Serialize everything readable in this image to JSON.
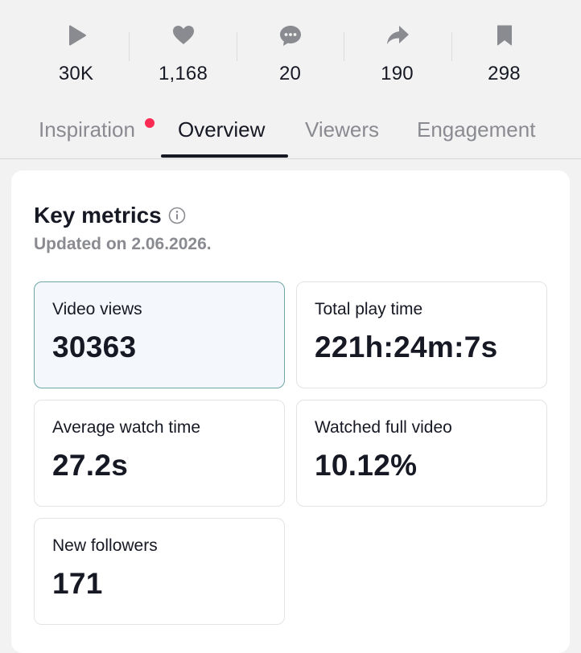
{
  "stats": [
    {
      "icon": "play-icon",
      "value": "30K"
    },
    {
      "icon": "heart-icon",
      "value": "1,168"
    },
    {
      "icon": "comment-icon",
      "value": "20"
    },
    {
      "icon": "share-icon",
      "value": "190"
    },
    {
      "icon": "bookmark-icon",
      "value": "298"
    }
  ],
  "tabs": [
    {
      "label": "Inspiration",
      "notification": true
    },
    {
      "label": "Overview",
      "active": true
    },
    {
      "label": "Viewers"
    },
    {
      "label": "Engagement"
    }
  ],
  "key_metrics": {
    "title": "Key metrics",
    "updated": "Updated on 2.06.2026.",
    "cards": [
      {
        "label": "Video views",
        "value": "30363",
        "selected": true
      },
      {
        "label": "Total play time",
        "value": "221h:24m:7s"
      },
      {
        "label": "Average watch time",
        "value": "27.2s"
      },
      {
        "label": "Watched full video",
        "value": "10.12%"
      },
      {
        "label": "New followers",
        "value": "171"
      }
    ]
  },
  "colors": {
    "background": "#f2f2f2",
    "card": "#ffffff",
    "text": "#161823",
    "muted": "#8a8b91",
    "icon": "#8a8b91",
    "notification_dot": "#fe2c55",
    "selected_card_bg": "#f4f8fc",
    "selected_card_border": "#6fa6a8"
  }
}
